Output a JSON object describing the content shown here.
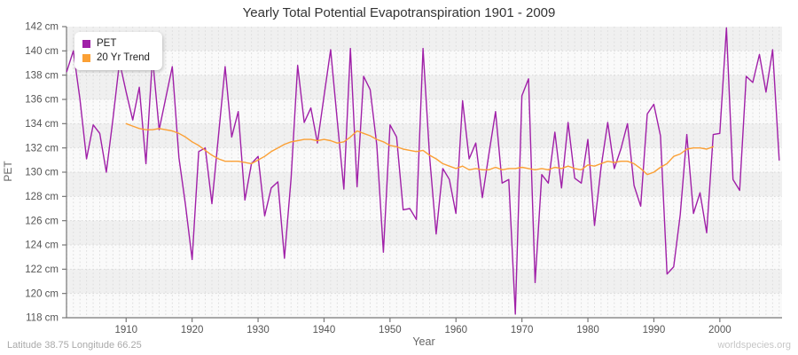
{
  "title": "Yearly Total Potential Evapotranspiration 1901 - 2009",
  "footer": {
    "left": "Latitude 38.75 Longitude 66.25",
    "right": "worldspecies.org"
  },
  "axes": {
    "y_label": "PET",
    "x_label": "Year",
    "y_unit": "cm",
    "y_ticks": [
      118,
      120,
      122,
      124,
      126,
      128,
      130,
      132,
      134,
      136,
      138,
      140,
      142
    ],
    "x_ticks": [
      1910,
      1920,
      1930,
      1940,
      1950,
      1960,
      1970,
      1980,
      1990,
      2000
    ]
  },
  "colors": {
    "pet_line": "#A020A8",
    "trend_line": "#FBA035",
    "band_dark": "#f0f0f0",
    "band_light": "#fafafa",
    "vgrid": "#dcdcdc",
    "hgrid": "#d9d9d9",
    "axis": "#777777",
    "tick_text": "#555555"
  },
  "chart_data": {
    "type": "line",
    "title": "Yearly Total Potential Evapotranspiration 1901 - 2009",
    "xlabel": "Year",
    "ylabel": "PET",
    "ylim": [
      118,
      142
    ],
    "xlim": [
      1900.5,
      2009.5
    ],
    "grid": "vertical-dashed-yearly, horizontal bands every 2 cm",
    "legend_position": "top-left",
    "series": [
      {
        "name": "PET",
        "color": "#A020A8",
        "x_start": 1901,
        "values": [
          138.3,
          140.0,
          136.0,
          131.1,
          133.9,
          133.2,
          130.0,
          134.4,
          139.1,
          136.6,
          134.3,
          137.0,
          130.7,
          139.5,
          133.5,
          136.1,
          138.7,
          131.2,
          127.3,
          122.8,
          131.7,
          132.0,
          127.4,
          133.0,
          138.7,
          132.9,
          135.0,
          127.7,
          130.7,
          131.3,
          126.4,
          128.7,
          129.2,
          122.9,
          129.5,
          138.8,
          134.1,
          135.3,
          132.4,
          136.3,
          140.1,
          134.3,
          128.6,
          140.2,
          128.8,
          137.9,
          136.8,
          132.2,
          123.4,
          133.9,
          132.9,
          126.9,
          127.0,
          126.1,
          140.2,
          131.3,
          124.9,
          130.3,
          129.4,
          126.6,
          135.9,
          131.1,
          132.4,
          127.9,
          131.5,
          135.0,
          129.1,
          129.4,
          118.3,
          136.3,
          137.7,
          120.9,
          129.8,
          129.1,
          133.3,
          128.7,
          134.1,
          129.5,
          129.1,
          132.7,
          125.6,
          130.4,
          134.1,
          130.3,
          131.9,
          134.0,
          128.9,
          127.2,
          134.8,
          135.6,
          133.0,
          121.6,
          122.2,
          126.5,
          133.1,
          126.6,
          128.3,
          125.0,
          133.1,
          133.2,
          141.9,
          129.4,
          128.5,
          137.9,
          137.4,
          139.7,
          136.6,
          140.1,
          131.0
        ]
      },
      {
        "name": "20 Yr Trend",
        "color": "#FBA035",
        "x_start": 1910,
        "values": [
          134.0,
          133.8,
          133.6,
          133.5,
          133.5,
          133.6,
          133.5,
          133.4,
          133.2,
          132.9,
          132.5,
          132.2,
          131.8,
          131.4,
          131.1,
          130.9,
          130.9,
          130.9,
          130.8,
          130.7,
          131.0,
          131.3,
          131.7,
          132.0,
          132.3,
          132.5,
          132.6,
          132.7,
          132.7,
          132.6,
          132.7,
          132.6,
          132.4,
          132.5,
          132.9,
          133.4,
          133.2,
          133.0,
          132.7,
          132.5,
          132.2,
          132.1,
          131.9,
          131.8,
          131.7,
          131.8,
          131.4,
          131.1,
          130.7,
          130.5,
          130.3,
          130.5,
          130.2,
          130.3,
          130.2,
          130.2,
          130.4,
          130.2,
          130.3,
          130.3,
          130.4,
          130.3,
          130.2,
          130.3,
          130.2,
          130.4,
          130.3,
          130.5,
          130.3,
          130.2,
          130.6,
          130.5,
          130.7,
          130.9,
          130.8,
          130.9,
          130.9,
          130.7,
          130.3,
          129.8,
          130.0,
          130.4,
          130.7,
          131.3,
          131.5,
          131.9,
          132.0,
          132.0,
          131.9,
          132.1
        ]
      }
    ]
  }
}
